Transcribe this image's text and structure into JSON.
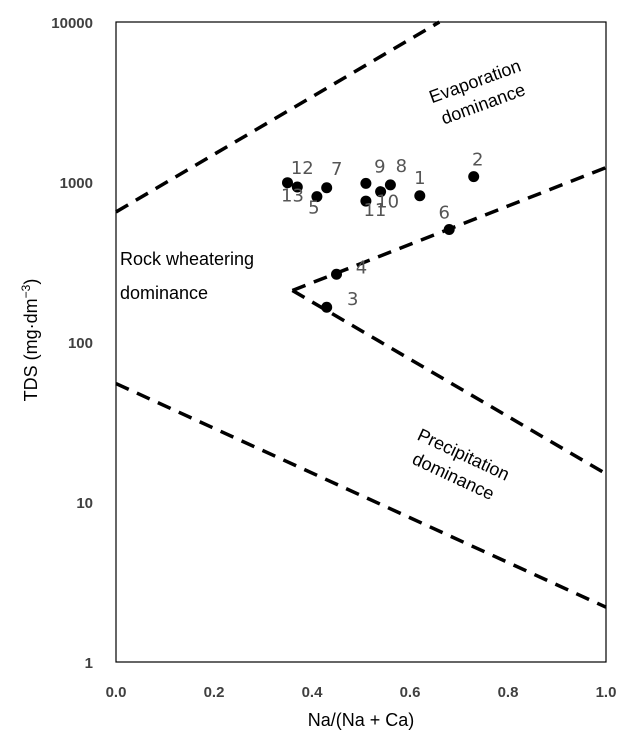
{
  "chart_data": {
    "type": "scatter",
    "title": "",
    "xlabel": "Na/(Na + Ca)",
    "ylabel_main": "TDS (mg·dm",
    "ylabel_sup": "−3",
    "ylabel_close": ")",
    "xlim": [
      0.0,
      1.0
    ],
    "ylim": [
      1,
      10000
    ],
    "y_scale": "log",
    "grid": false,
    "x_ticks": [
      "0.0",
      "0.2",
      "0.4",
      "0.6",
      "0.8",
      "1.0"
    ],
    "y_ticks": [
      "1",
      "10",
      "100",
      "1000",
      "10000"
    ],
    "points": [
      {
        "label": "1",
        "x": 0.62,
        "y": 820
      },
      {
        "label": "2",
        "x": 0.73,
        "y": 1080
      },
      {
        "label": "3",
        "x": 0.43,
        "y": 165
      },
      {
        "label": "4",
        "x": 0.45,
        "y": 265
      },
      {
        "label": "5",
        "x": 0.41,
        "y": 810
      },
      {
        "label": "6",
        "x": 0.68,
        "y": 505
      },
      {
        "label": "7",
        "x": 0.43,
        "y": 920
      },
      {
        "label": "8",
        "x": 0.56,
        "y": 960
      },
      {
        "label": "9",
        "x": 0.51,
        "y": 980
      },
      {
        "label": "10",
        "x": 0.54,
        "y": 870
      },
      {
        "label": "11",
        "x": 0.51,
        "y": 760
      },
      {
        "label": "12",
        "x": 0.37,
        "y": 930
      },
      {
        "label": "13",
        "x": 0.35,
        "y": 990
      }
    ],
    "boundary_lines": [
      {
        "from": [
          0.0,
          650
        ],
        "to": [
          0.66,
          10000
        ]
      },
      {
        "from": [
          0.36,
          210
        ],
        "to": [
          1.0,
          1230
        ]
      },
      {
        "from": [
          0.36,
          210
        ],
        "to": [
          1.0,
          15
        ]
      },
      {
        "from": [
          0.0,
          55
        ],
        "to": [
          1.0,
          2.2
        ]
      }
    ],
    "regions": [
      {
        "lines": [
          "Evaporation",
          "dominance"
        ]
      },
      {
        "lines": [
          "Rock wheatering",
          "dominance"
        ]
      },
      {
        "lines": [
          "Precipitation",
          "dominance"
        ]
      }
    ]
  }
}
